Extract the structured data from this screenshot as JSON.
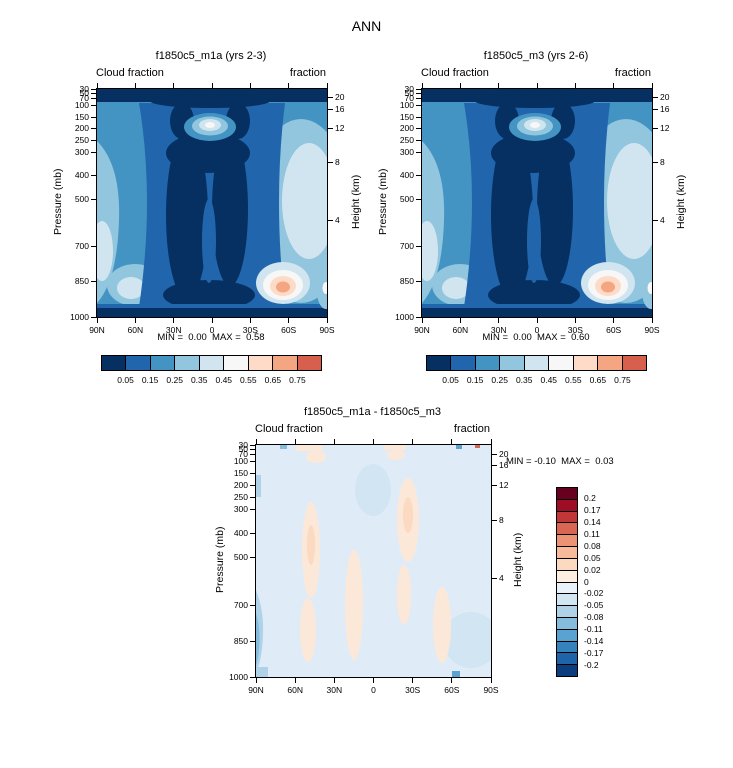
{
  "title": "ANN",
  "panels": [
    {
      "title": "f1850c5_m1a (yrs 2-3)",
      "field_label": "Cloud fraction",
      "units_label": "fraction",
      "stats": "MIN =  0.00  MAX =  0.58"
    },
    {
      "title": "f1850c5_m3 (yrs 2-6)",
      "field_label": "Cloud fraction",
      "units_label": "fraction",
      "stats": "MIN =  0.00  MAX =  0.60"
    },
    {
      "title": "f1850c5_m1a - f1850c5_m3",
      "field_label": "Cloud fraction",
      "units_label": "fraction",
      "stats": "MIN = -0.10  MAX =  0.03"
    }
  ],
  "axes": {
    "pressure_label": "Pressure (mb)",
    "pressure_ticks": [
      30,
      50,
      70,
      100,
      150,
      200,
      250,
      300,
      400,
      500,
      700,
      850,
      1000
    ],
    "height_label": "Height (km)",
    "height_ticks": [
      20,
      16,
      12,
      8,
      4
    ],
    "lat_ticks": [
      "90N",
      "60N",
      "30N",
      "0",
      "30S",
      "60S",
      "90S"
    ]
  },
  "colorbars": {
    "fraction": {
      "tick_labels": [
        "0.05",
        "0.15",
        "0.25",
        "0.35",
        "0.45",
        "0.55",
        "0.65",
        "0.75"
      ],
      "colors": [
        "#053061",
        "#2166ac",
        "#4393c3",
        "#92c5de",
        "#d1e5f0",
        "#f7f7f7",
        "#fddbc7",
        "#f4a582",
        "#d6604d"
      ]
    },
    "difference": {
      "tick_labels": [
        "0.2",
        "0.17",
        "0.14",
        "0.11",
        "0.08",
        "0.05",
        "0.02",
        "0",
        "-0.02",
        "-0.05",
        "-0.08",
        "-0.11",
        "-0.14",
        "-0.17",
        "-0.2"
      ],
      "colors": [
        "#67001f",
        "#9e0c25",
        "#c13639",
        "#d96552",
        "#ec9374",
        "#f7bb9b",
        "#fcd9c1",
        "#fdeee2",
        "#e9f2fa",
        "#d2e5f3",
        "#b0d2e9",
        "#85bcdc",
        "#5aa2d0",
        "#3682bd",
        "#1f63a8",
        "#0c3d7c"
      ]
    }
  },
  "chart_data": [
    {
      "type": "heatmap",
      "title": "f1850c5_m1a (yrs 2-3)",
      "variable": "Cloud fraction",
      "units": "fraction",
      "min": 0.0,
      "max": 0.58,
      "lat_ticks": [
        "90N",
        "60N",
        "30N",
        "0",
        "30S",
        "60S",
        "90S"
      ],
      "pressure_levels_mb": [
        100,
        200,
        300,
        400,
        500,
        700,
        850,
        1000
      ],
      "pressure_range_mb": [
        30,
        1000
      ],
      "height_ticks_km": [
        20,
        16,
        12,
        8,
        4
      ],
      "contour_levels": [
        0.05,
        0.15,
        0.25,
        0.35,
        0.45,
        0.55,
        0.65,
        0.75
      ],
      "palette_low_to_high": [
        "#053061",
        "#2166ac",
        "#4393c3",
        "#92c5de",
        "#d1e5f0",
        "#f7f7f7",
        "#fddbc7",
        "#f4a582",
        "#d6604d"
      ],
      "colorbar_position": "bottom",
      "approx_values_by_level": [
        [
          0.1,
          0.15,
          0.15,
          0.25,
          0.15,
          0.15,
          0.1
        ],
        [
          0.15,
          0.2,
          0.15,
          0.4,
          0.15,
          0.2,
          0.15
        ],
        [
          0.2,
          0.2,
          0.1,
          0.15,
          0.1,
          0.25,
          0.2
        ],
        [
          0.25,
          0.2,
          0.08,
          0.08,
          0.08,
          0.3,
          0.25
        ],
        [
          0.25,
          0.22,
          0.08,
          0.08,
          0.08,
          0.32,
          0.3
        ],
        [
          0.3,
          0.25,
          0.1,
          0.08,
          0.1,
          0.4,
          0.35
        ],
        [
          0.32,
          0.35,
          0.15,
          0.1,
          0.15,
          0.58,
          0.4
        ],
        [
          0.05,
          0.1,
          0.05,
          0.05,
          0.05,
          0.1,
          0.1
        ]
      ]
    },
    {
      "type": "heatmap",
      "title": "f1850c5_m3 (yrs 2-6)",
      "variable": "Cloud fraction",
      "units": "fraction",
      "min": 0.0,
      "max": 0.6,
      "lat_ticks": [
        "90N",
        "60N",
        "30N",
        "0",
        "30S",
        "60S",
        "90S"
      ],
      "pressure_levels_mb": [
        100,
        200,
        300,
        400,
        500,
        700,
        850,
        1000
      ],
      "pressure_range_mb": [
        30,
        1000
      ],
      "height_ticks_km": [
        20,
        16,
        12,
        8,
        4
      ],
      "contour_levels": [
        0.05,
        0.15,
        0.25,
        0.35,
        0.45,
        0.55,
        0.65,
        0.75
      ],
      "palette_low_to_high": [
        "#053061",
        "#2166ac",
        "#4393c3",
        "#92c5de",
        "#d1e5f0",
        "#f7f7f7",
        "#fddbc7",
        "#f4a582",
        "#d6604d"
      ],
      "colorbar_position": "bottom",
      "approx_values_by_level": [
        [
          0.1,
          0.15,
          0.15,
          0.26,
          0.15,
          0.15,
          0.11
        ],
        [
          0.16,
          0.2,
          0.15,
          0.42,
          0.15,
          0.2,
          0.16
        ],
        [
          0.21,
          0.19,
          0.1,
          0.16,
          0.09,
          0.26,
          0.21
        ],
        [
          0.26,
          0.19,
          0.08,
          0.09,
          0.07,
          0.31,
          0.27
        ],
        [
          0.27,
          0.21,
          0.07,
          0.09,
          0.07,
          0.33,
          0.32
        ],
        [
          0.35,
          0.24,
          0.09,
          0.09,
          0.1,
          0.38,
          0.38
        ],
        [
          0.38,
          0.36,
          0.13,
          0.09,
          0.16,
          0.6,
          0.44
        ],
        [
          0.08,
          0.12,
          0.06,
          0.06,
          0.07,
          0.13,
          0.15
        ]
      ]
    },
    {
      "type": "heatmap",
      "title": "f1850c5_m1a - f1850c5_m3",
      "variable": "Cloud fraction difference",
      "units": "fraction",
      "min": -0.1,
      "max": 0.03,
      "lat_ticks": [
        "90N",
        "60N",
        "30N",
        "0",
        "30S",
        "60S",
        "90S"
      ],
      "pressure_levels_mb": [
        100,
        200,
        300,
        400,
        500,
        700,
        850,
        1000
      ],
      "pressure_range_mb": [
        30,
        1000
      ],
      "height_ticks_km": [
        20,
        16,
        12,
        8,
        4
      ],
      "contour_levels": [
        -0.2,
        -0.17,
        -0.14,
        -0.11,
        -0.08,
        -0.05,
        -0.02,
        0,
        0.02,
        0.05,
        0.08,
        0.11,
        0.14,
        0.17,
        0.2
      ],
      "palette_low_to_high": [
        "#0c3d7c",
        "#1f63a8",
        "#3682bd",
        "#5aa2d0",
        "#85bcdc",
        "#b0d2e9",
        "#d2e5f3",
        "#e9f2fa",
        "#fdeee2",
        "#fcd9c1",
        "#f7bb9b",
        "#ec9374",
        "#d96552",
        "#c13639",
        "#9e0c25",
        "#67001f"
      ],
      "colorbar_position": "right",
      "approx_values_by_level": [
        [
          0.0,
          0.0,
          0.0,
          -0.01,
          0.0,
          0.0,
          -0.01
        ],
        [
          -0.01,
          0.0,
          0.0,
          -0.02,
          0.0,
          0.0,
          -0.01
        ],
        [
          -0.01,
          0.01,
          0.0,
          -0.01,
          0.01,
          -0.01,
          -0.01
        ],
        [
          -0.01,
          0.01,
          0.0,
          -0.01,
          0.01,
          -0.01,
          -0.02
        ],
        [
          -0.02,
          0.01,
          0.01,
          -0.01,
          0.01,
          -0.01,
          -0.02
        ],
        [
          -0.05,
          0.01,
          0.01,
          -0.01,
          0.0,
          0.02,
          -0.03
        ],
        [
          -0.06,
          -0.01,
          0.02,
          0.01,
          -0.01,
          -0.02,
          -0.04
        ],
        [
          -0.03,
          -0.02,
          -0.01,
          -0.01,
          -0.02,
          -0.03,
          -0.05
        ]
      ]
    }
  ]
}
